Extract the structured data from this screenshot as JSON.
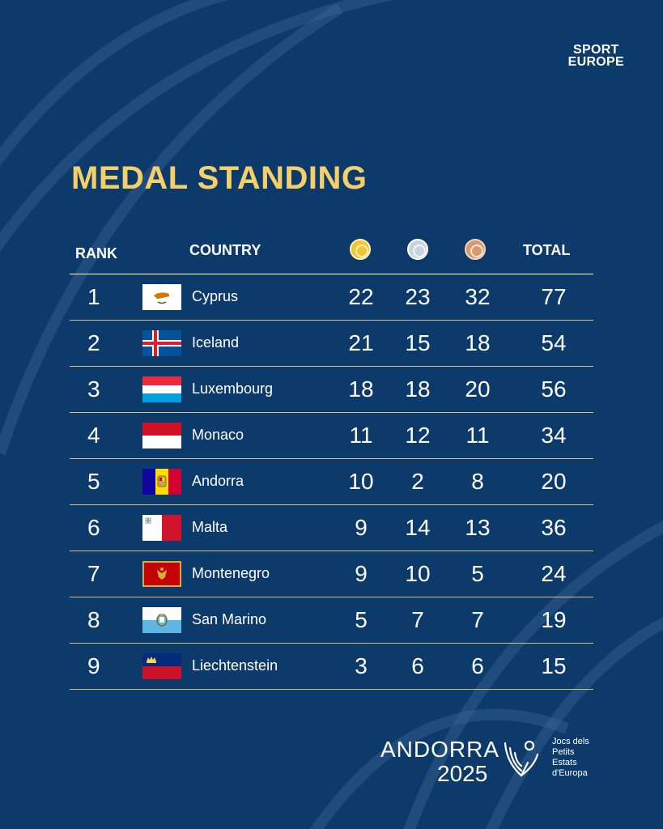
{
  "brand": {
    "line1": "SPORT",
    "line2": "EUROPE"
  },
  "title": "MEDAL STANDING",
  "table": {
    "headers": {
      "rank": "RANK",
      "country": "COUNTRY",
      "total": "TOTAL"
    },
    "medal_icons": [
      "gold-medal-icon",
      "silver-medal-icon",
      "bronze-medal-icon"
    ],
    "rows": [
      {
        "rank": "1",
        "country": "Cyprus",
        "flag": "cyprus-flag-icon",
        "gold": "22",
        "silver": "23",
        "bronze": "32",
        "total": "77"
      },
      {
        "rank": "2",
        "country": "Iceland",
        "flag": "iceland-flag-icon",
        "gold": "21",
        "silver": "15",
        "bronze": "18",
        "total": "54"
      },
      {
        "rank": "3",
        "country": "Luxembourg",
        "flag": "luxembourg-flag-icon",
        "gold": "18",
        "silver": "18",
        "bronze": "20",
        "total": "56"
      },
      {
        "rank": "4",
        "country": "Monaco",
        "flag": "monaco-flag-icon",
        "gold": "11",
        "silver": "12",
        "bronze": "11",
        "total": "34"
      },
      {
        "rank": "5",
        "country": "Andorra",
        "flag": "andorra-flag-icon",
        "gold": "10",
        "silver": "2",
        "bronze": "8",
        "total": "20"
      },
      {
        "rank": "6",
        "country": "Malta",
        "flag": "malta-flag-icon",
        "gold": "9",
        "silver": "14",
        "bronze": "13",
        "total": "36"
      },
      {
        "rank": "7",
        "country": "Montenegro",
        "flag": "montenegro-flag-icon",
        "gold": "9",
        "silver": "10",
        "bronze": "5",
        "total": "24"
      },
      {
        "rank": "8",
        "country": "San Marino",
        "flag": "san-marino-flag-icon",
        "gold": "5",
        "silver": "7",
        "bronze": "7",
        "total": "19"
      },
      {
        "rank": "9",
        "country": "Liechtenstein",
        "flag": "liechtenstein-flag-icon",
        "gold": "3",
        "silver": "6",
        "bronze": "6",
        "total": "15"
      }
    ]
  },
  "footer": {
    "andorra": "ANDORRA",
    "year": "2025",
    "games_line1": "Jocs dels",
    "games_line2": "Petits",
    "games_line3": "Estats",
    "games_line4": "d'Europa"
  },
  "colors": {
    "background": "#0c3a6b",
    "title": "#f5d06a",
    "row_divider": "#d8c07a",
    "gold": "#f3c533",
    "silver": "#c9d3de",
    "bronze": "#d79a6c"
  }
}
